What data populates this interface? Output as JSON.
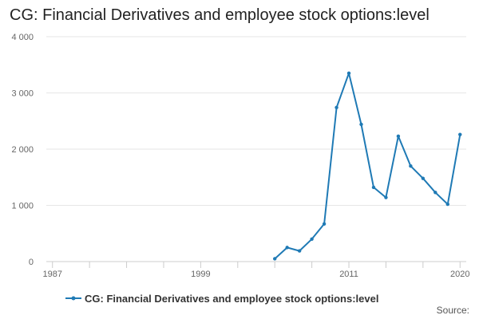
{
  "chart_data": {
    "type": "line",
    "title": "CG: Financial Derivatives and employee stock options:level",
    "xlabel": "",
    "ylabel": "",
    "xlim": [
      1986.5,
      2020.5
    ],
    "ylim": [
      0,
      4000
    ],
    "x_ticks": [
      1987,
      1999,
      2011,
      2020
    ],
    "x_minor_ticks": [
      1987,
      1990,
      1993,
      1996,
      1999,
      2002,
      2005,
      2008,
      2011,
      2014,
      2017,
      2020
    ],
    "y_ticks": [
      0,
      1000,
      2000,
      3000,
      4000
    ],
    "y_tick_labels": [
      "0",
      "1 000",
      "2 000",
      "3 000",
      "4 000"
    ],
    "grid": true,
    "legend_position": "bottom",
    "colors": {
      "series": "#1f7ab5",
      "grid": "#e6e6e6",
      "axis": "#cccccc"
    },
    "series": [
      {
        "name": "CG: Financial Derivatives and employee stock options:level",
        "x": [
          2005,
          2006,
          2007,
          2008,
          2009,
          2010,
          2011,
          2012,
          2013,
          2014,
          2015,
          2016,
          2017,
          2018,
          2019,
          2020
        ],
        "y": [
          50,
          250,
          190,
          400,
          670,
          2740,
          3350,
          2440,
          1320,
          1140,
          2230,
          1700,
          1480,
          1230,
          1020,
          2260
        ]
      }
    ]
  },
  "source_label": "Source:"
}
